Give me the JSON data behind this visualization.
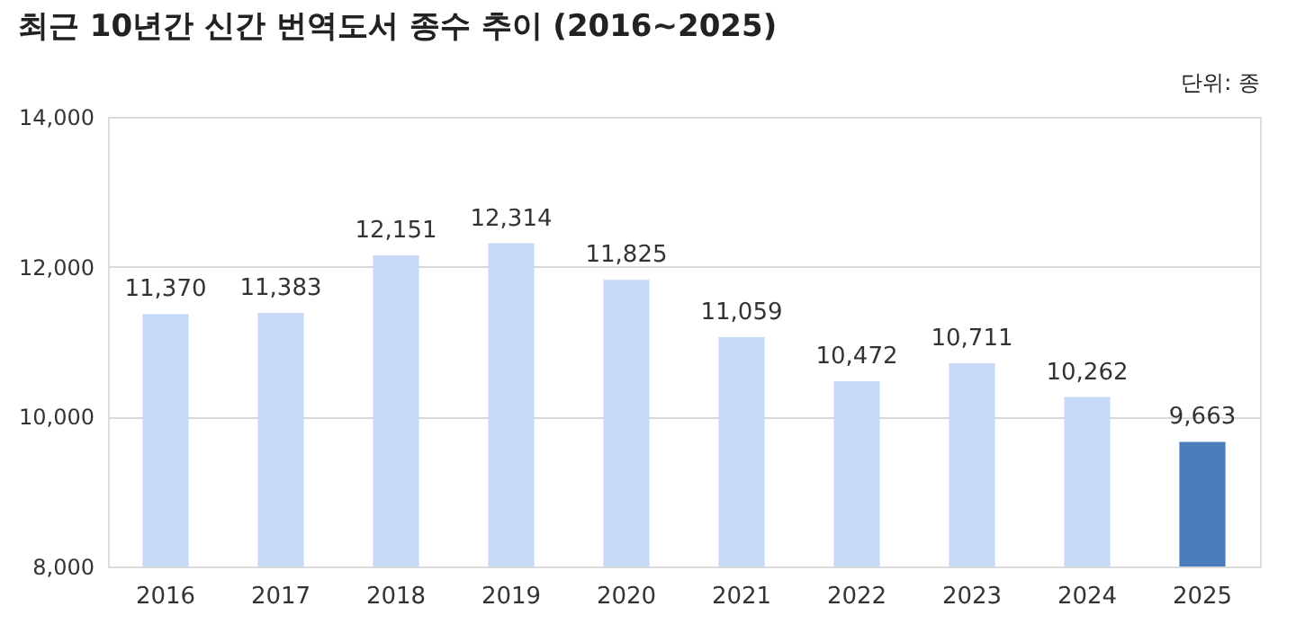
{
  "chart_data": {
    "type": "bar",
    "title": "최근 10년간 신간 번역도서 종수 추이 (2016~2025)",
    "annotations": [
      "단위: 종"
    ],
    "categories": [
      "2016",
      "2017",
      "2018",
      "2019",
      "2020",
      "2021",
      "2022",
      "2023",
      "2024",
      "2025"
    ],
    "values": [
      11370,
      11383,
      12151,
      12314,
      11825,
      11059,
      10472,
      10711,
      10262,
      9663
    ],
    "colors": [
      "#c6d9f7",
      "#c6d9f7",
      "#c6d9f7",
      "#c6d9f7",
      "#c6d9f7",
      "#c6d9f7",
      "#c6d9f7",
      "#c6d9f7",
      "#c6d9f7",
      "#4a7ebb"
    ],
    "value_labels": [
      "11,370",
      "11,383",
      "12,151",
      "12,314",
      "11,825",
      "11,059",
      "10,472",
      "10,711",
      "10,262",
      "9,663"
    ],
    "ylim": [
      8000,
      14000
    ],
    "yticks": [
      {
        "value": 8000,
        "label": "8,000"
      },
      {
        "value": 10000,
        "label": "10,000"
      },
      {
        "value": 12000,
        "label": "12,000"
      },
      {
        "value": 14000,
        "label": "14,000"
      }
    ],
    "grid": "y"
  }
}
